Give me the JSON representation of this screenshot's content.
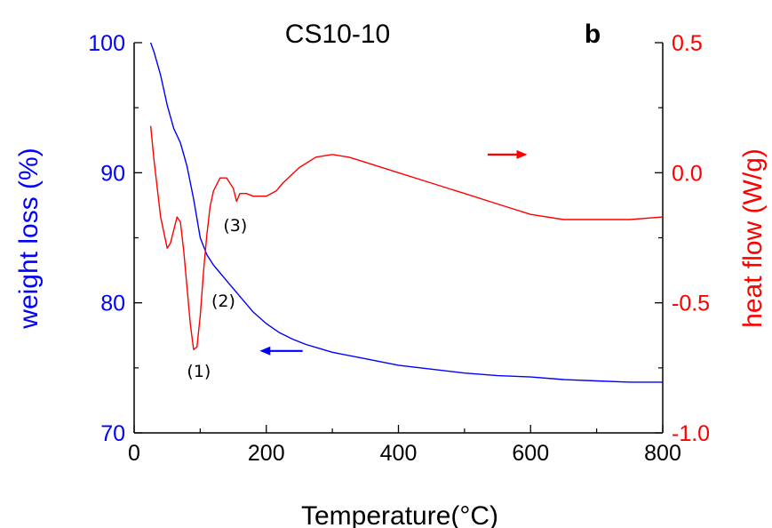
{
  "chart_data": {
    "type": "line",
    "title": "CS10-10",
    "panel_label": "b",
    "xlabel": "Temperature(°C)",
    "xlim": [
      0,
      800
    ],
    "x_ticks": [
      0,
      200,
      400,
      600,
      800
    ],
    "y_left": {
      "label": "weight loss (%)",
      "range": [
        70,
        100
      ],
      "ticks": [
        70,
        80,
        90,
        100
      ],
      "color": "#0000ff"
    },
    "y_right": {
      "label": "heat flow (W/g)",
      "range": [
        -1.0,
        0.5
      ],
      "ticks": [
        -1.0,
        -0.5,
        0.0,
        0.5
      ],
      "tick_labels": [
        "-1.0",
        "-0.5",
        "0.0",
        "0.5"
      ],
      "color": "#ff0000"
    },
    "series": [
      {
        "axis": "left",
        "color": "#0000ff",
        "x": [
          25,
          30,
          40,
          50,
          60,
          70,
          80,
          90,
          100,
          110,
          120,
          130,
          140,
          160,
          180,
          200,
          220,
          240,
          260,
          280,
          300,
          350,
          400,
          450,
          500,
          550,
          600,
          650,
          700,
          750,
          800
        ],
        "y": [
          100,
          99.3,
          97.5,
          95.2,
          93.4,
          92.3,
          90.5,
          88.0,
          85.0,
          83.7,
          82.9,
          82.3,
          81.7,
          80.5,
          79.3,
          78.4,
          77.7,
          77.2,
          76.8,
          76.5,
          76.2,
          75.7,
          75.2,
          74.9,
          74.6,
          74.4,
          74.3,
          74.1,
          74.0,
          73.9,
          73.9
        ]
      },
      {
        "axis": "right",
        "color": "#ff0000",
        "x": [
          25,
          30,
          40,
          50,
          55,
          60,
          65,
          70,
          75,
          80,
          85,
          90,
          95,
          100,
          105,
          110,
          115,
          120,
          130,
          140,
          150,
          155,
          160,
          170,
          180,
          200,
          215,
          225,
          250,
          275,
          300,
          325,
          350,
          400,
          450,
          500,
          550,
          600,
          650,
          700,
          750,
          800
        ],
        "y": [
          0.18,
          0.05,
          -0.17,
          -0.29,
          -0.27,
          -0.22,
          -0.17,
          -0.19,
          -0.3,
          -0.44,
          -0.58,
          -0.68,
          -0.67,
          -0.55,
          -0.38,
          -0.24,
          -0.13,
          -0.07,
          -0.02,
          -0.02,
          -0.06,
          -0.11,
          -0.08,
          -0.08,
          -0.09,
          -0.09,
          -0.07,
          -0.04,
          0.02,
          0.06,
          0.07,
          0.06,
          0.04,
          0.0,
          -0.04,
          -0.08,
          -0.12,
          -0.16,
          -0.18,
          -0.18,
          -0.18,
          -0.17
        ]
      }
    ],
    "annotations": [
      {
        "text": "(1)",
        "x": 98,
        "y_left": 74.3
      },
      {
        "text": "(2)",
        "x": 135,
        "y_left": 79.7
      },
      {
        "text": "(3)",
        "x": 153,
        "y_left": 85.5
      }
    ],
    "arrows": [
      {
        "series": "left",
        "direction": "left",
        "x_from": 255,
        "x_to": 190,
        "y_left": 76.3,
        "color": "#0000ff"
      },
      {
        "series": "right",
        "direction": "right",
        "x_from": 535,
        "x_to": 595,
        "y_right": 0.07,
        "color": "#ff0000"
      }
    ]
  }
}
